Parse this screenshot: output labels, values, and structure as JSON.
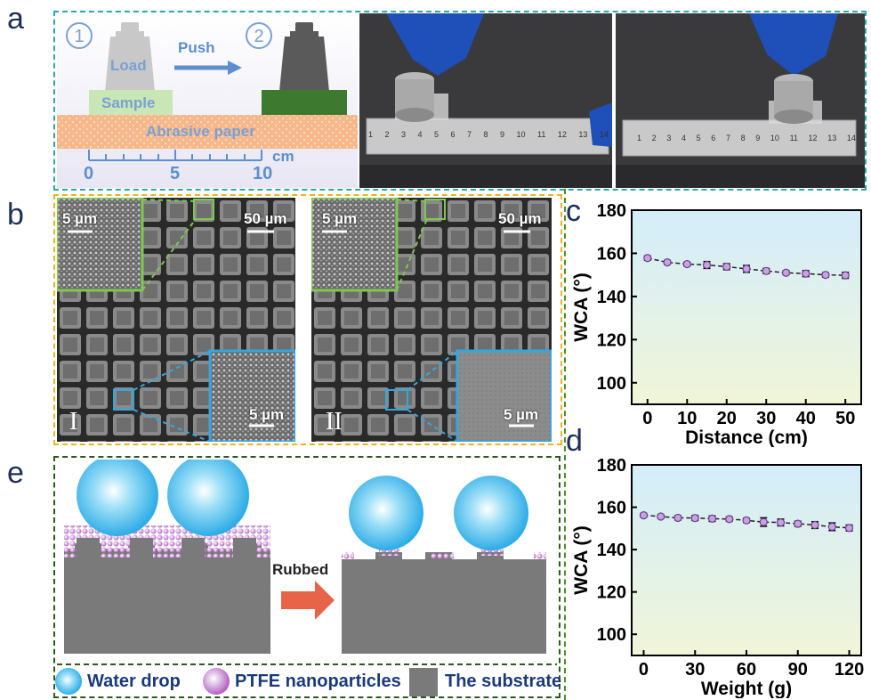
{
  "panels": {
    "a": "a",
    "b": "b",
    "c": "c",
    "d": "d",
    "e": "e"
  },
  "schematic_a": {
    "step1": "①",
    "step2": "②",
    "load": "Load",
    "push": "Push",
    "sample": "Sample",
    "abrasive": "Abrasive paper",
    "unit": "cm",
    "scale_ticks": [
      "0",
      "5",
      "10"
    ]
  },
  "ruler_numbers": [
    "1",
    "2",
    "3",
    "4",
    "5",
    "6",
    "7",
    "8",
    "9",
    "10",
    "11",
    "12",
    "13",
    "14"
  ],
  "sem": {
    "I": {
      "roman": "I",
      "scale_main": "50 µm",
      "scale_top_inset": "5 µm",
      "scale_bottom_inset": "5 µm"
    },
    "II": {
      "roman": "II",
      "scale_main": "50 µm",
      "scale_top_inset": "5 µm",
      "scale_bottom_inset": "5 µm"
    }
  },
  "chart_data": [
    {
      "type": "line",
      "panel": "c",
      "xlabel": "Distance (cm)",
      "ylabel": "WCA (°)",
      "xticks": [
        "0",
        "10",
        "20",
        "30",
        "40",
        "50"
      ],
      "yticks": [
        "100",
        "120",
        "140",
        "160",
        "180"
      ],
      "xlim": [
        -4,
        54
      ],
      "ylim": [
        90,
        180
      ],
      "x": [
        0,
        5,
        10,
        15,
        20,
        25,
        30,
        35,
        40,
        45,
        50
      ],
      "y": [
        157.8,
        155.8,
        155.0,
        154.6,
        153.8,
        152.8,
        151.8,
        151.0,
        150.6,
        150.0,
        149.8
      ],
      "err": [
        1.0,
        0.9,
        0.9,
        1.6,
        1.4,
        1.6,
        1.2,
        0.9,
        1.4,
        1.0,
        1.4
      ]
    },
    {
      "type": "line",
      "panel": "d",
      "xlabel": "Weight (g)",
      "ylabel": "WCA (°)",
      "xticks": [
        "0",
        "30",
        "60",
        "90",
        "120"
      ],
      "yticks": [
        "100",
        "120",
        "140",
        "160",
        "180"
      ],
      "xlim": [
        -7,
        127
      ],
      "ylim": [
        90,
        180
      ],
      "x": [
        0,
        10,
        20,
        30,
        40,
        50,
        60,
        70,
        80,
        90,
        100,
        110,
        120
      ],
      "y": [
        156.2,
        155.6,
        155.0,
        154.9,
        154.6,
        154.4,
        153.8,
        153.0,
        152.8,
        152.2,
        151.6,
        150.8,
        150.2
      ],
      "err": [
        0.9,
        0.8,
        1.0,
        1.2,
        1.3,
        1.0,
        1.0,
        2.0,
        1.6,
        1.2,
        1.6,
        1.8,
        1.4
      ]
    }
  ],
  "schematic_e": {
    "arrow_label": "Rubbed",
    "legend": {
      "water": "Water drop",
      "ptfe": "PTFE nanoparticles",
      "substrate": "The substrate"
    }
  }
}
